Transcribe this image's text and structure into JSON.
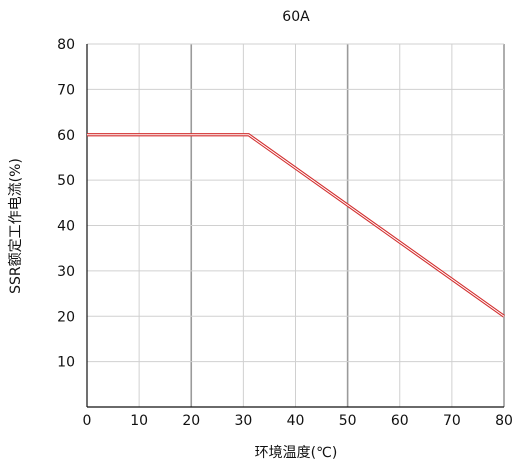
{
  "chart_data": {
    "type": "line",
    "title": "60A",
    "xlabel": "环境温度(℃)",
    "ylabel": "SSR额定工作电流(%)",
    "xlim": [
      0,
      80
    ],
    "ylim": [
      0,
      80
    ],
    "x_ticks": [
      0,
      10,
      20,
      30,
      40,
      50,
      60,
      70,
      80
    ],
    "y_ticks": [
      10,
      20,
      30,
      40,
      50,
      60,
      70,
      80
    ],
    "grid": true,
    "series": [
      {
        "points": [
          {
            "x": 0,
            "y": 60
          },
          {
            "x": 31,
            "y": 60
          },
          {
            "x": 80,
            "y": 20
          }
        ],
        "color": "#d32f2f"
      }
    ],
    "colors": {
      "grid": "#d0d0d0",
      "grid_major": "#9a9a9a",
      "axis": "#111111"
    }
  }
}
